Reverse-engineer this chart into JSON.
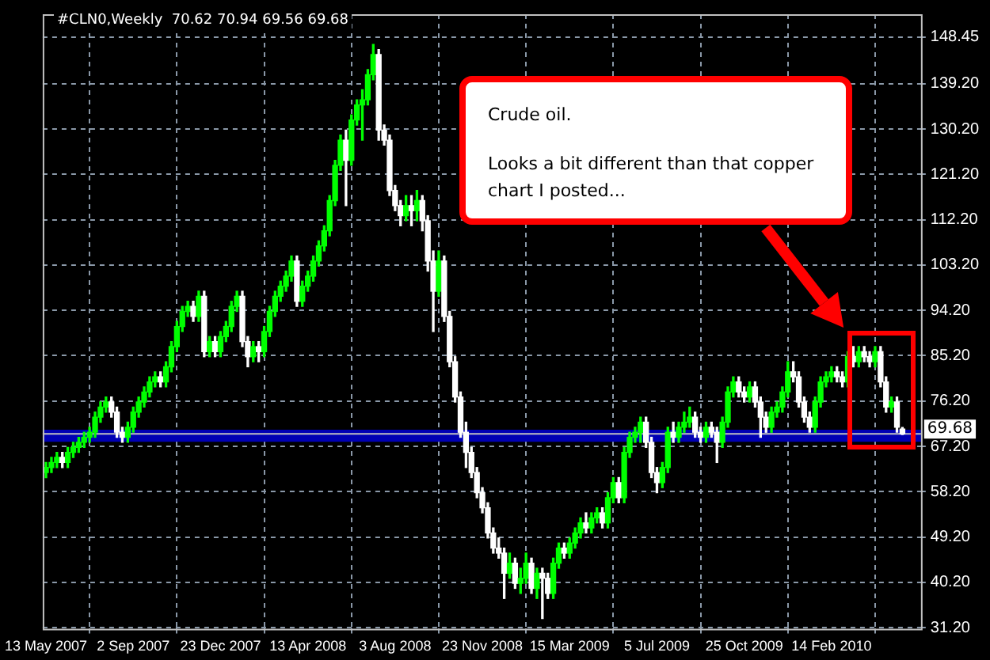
{
  "chart_data": {
    "type": "candlestick",
    "title": "#CLN0,Weekly  70.62 70.94 69.56 69.68",
    "annotations": [
      "Crude oil.",
      "Looks a bit different than that copper chart I posted..."
    ],
    "categories": [
      "13 May 2007",
      null,
      null,
      null,
      null,
      null,
      null,
      null,
      null,
      null,
      null,
      null,
      null,
      null,
      null,
      null,
      "2 Sep 2007",
      null,
      null,
      null,
      null,
      null,
      null,
      null,
      null,
      null,
      null,
      null,
      null,
      null,
      null,
      null,
      "23 Dec 2007",
      null,
      null,
      null,
      null,
      null,
      null,
      null,
      null,
      null,
      null,
      null,
      null,
      null,
      null,
      null,
      "13 Apr 2008",
      null,
      null,
      null,
      null,
      null,
      null,
      null,
      null,
      null,
      null,
      null,
      null,
      null,
      null,
      null,
      "3 Aug 2008",
      null,
      null,
      null,
      null,
      null,
      null,
      null,
      null,
      null,
      null,
      null,
      null,
      null,
      null,
      null,
      "23 Nov 2008",
      null,
      null,
      null,
      null,
      null,
      null,
      null,
      null,
      null,
      null,
      null,
      null,
      null,
      null,
      null,
      "15 Mar 2009",
      null,
      null,
      null,
      null,
      null,
      null,
      null,
      null,
      null,
      null,
      null,
      null,
      null,
      null,
      null,
      "5 Jul 2009",
      null,
      null,
      null,
      null,
      null,
      null,
      null,
      null,
      null,
      null,
      null,
      null,
      null,
      null,
      null,
      "25 Oct 2009",
      null,
      null,
      null,
      null,
      null,
      null,
      null,
      null,
      null,
      null,
      null,
      null,
      null,
      null,
      null,
      "14 Feb 2010",
      null,
      null,
      null,
      null,
      null,
      null,
      null,
      null,
      null,
      null,
      null,
      null,
      null
    ],
    "ohlc": [
      [
        62,
        64,
        61,
        63
      ],
      [
        63,
        65,
        62,
        64
      ],
      [
        64,
        66,
        63,
        65
      ],
      [
        65,
        66,
        63,
        64
      ],
      [
        64,
        67,
        63,
        66
      ],
      [
        66,
        68,
        65,
        67
      ],
      [
        67,
        69,
        66,
        68
      ],
      [
        68,
        70,
        67,
        69
      ],
      [
        69,
        71,
        68,
        70
      ],
      [
        70,
        74,
        69,
        73
      ],
      [
        73,
        76,
        72,
        75
      ],
      [
        75,
        77,
        74,
        76
      ],
      [
        76,
        77,
        73,
        74
      ],
      [
        74,
        75,
        69,
        70
      ],
      [
        70,
        71,
        68,
        69
      ],
      [
        69,
        72,
        68,
        71
      ],
      [
        71,
        75,
        70,
        74
      ],
      [
        74,
        77,
        73,
        76
      ],
      [
        76,
        79,
        75,
        78
      ],
      [
        78,
        81,
        77,
        80
      ],
      [
        80,
        82,
        79,
        81
      ],
      [
        81,
        82,
        79,
        80
      ],
      [
        80,
        84,
        79,
        83
      ],
      [
        83,
        88,
        82,
        87
      ],
      [
        87,
        92,
        86,
        91
      ],
      [
        91,
        95,
        90,
        94
      ],
      [
        94,
        96,
        93,
        95
      ],
      [
        95,
        96,
        92,
        93
      ],
      [
        93,
        98,
        92,
        97
      ],
      [
        97,
        98,
        85,
        86
      ],
      [
        86,
        89,
        85,
        88
      ],
      [
        88,
        89,
        85,
        86
      ],
      [
        86,
        90,
        85,
        89
      ],
      [
        89,
        92,
        88,
        91
      ],
      [
        91,
        96,
        90,
        95
      ],
      [
        95,
        98,
        94,
        97
      ],
      [
        97,
        98,
        87,
        88
      ],
      [
        88,
        89,
        83,
        85
      ],
      [
        85,
        88,
        84,
        87
      ],
      [
        87,
        88,
        84,
        86
      ],
      [
        86,
        91,
        85,
        90
      ],
      [
        90,
        95,
        89,
        94
      ],
      [
        94,
        98,
        93,
        97
      ],
      [
        97,
        100,
        96,
        99
      ],
      [
        99,
        102,
        98,
        101
      ],
      [
        101,
        105,
        100,
        104
      ],
      [
        104,
        105,
        95,
        96
      ],
      [
        96,
        100,
        95,
        99
      ],
      [
        99,
        102,
        98,
        101
      ],
      [
        101,
        105,
        100,
        104
      ],
      [
        104,
        108,
        103,
        107
      ],
      [
        107,
        111,
        106,
        110
      ],
      [
        110,
        117,
        109,
        116
      ],
      [
        116,
        124,
        115,
        123
      ],
      [
        123,
        129,
        122,
        128
      ],
      [
        128,
        130,
        115,
        124
      ],
      [
        124,
        133,
        123,
        132
      ],
      [
        132,
        136,
        131,
        135
      ],
      [
        135,
        138,
        128,
        136
      ],
      [
        136,
        142,
        135,
        141
      ],
      [
        141,
        147,
        140,
        145
      ],
      [
        145,
        146,
        128,
        130
      ],
      [
        130,
        131,
        127,
        128
      ],
      [
        128,
        129,
        117,
        118
      ],
      [
        118,
        119,
        114,
        115
      ],
      [
        115,
        116,
        111,
        113
      ],
      [
        113,
        117,
        112,
        115
      ],
      [
        115,
        117,
        111,
        114
      ],
      [
        114,
        118,
        112,
        116
      ],
      [
        116,
        117,
        110,
        112
      ],
      [
        112,
        113,
        102,
        104
      ],
      [
        104,
        106,
        90,
        98
      ],
      [
        98,
        106,
        97,
        104
      ],
      [
        104,
        105,
        92,
        93
      ],
      [
        93,
        94,
        83,
        84
      ],
      [
        84,
        85,
        76,
        77
      ],
      [
        77,
        78,
        69,
        70
      ],
      [
        70,
        72,
        63,
        66
      ],
      [
        66,
        67,
        61,
        62
      ],
      [
        62,
        63,
        57,
        58
      ],
      [
        58,
        59,
        54,
        55
      ],
      [
        55,
        56,
        49,
        50
      ],
      [
        50,
        51,
        46,
        47
      ],
      [
        47,
        49,
        45,
        46
      ],
      [
        46,
        47,
        37,
        42
      ],
      [
        42,
        46,
        41,
        44
      ],
      [
        44,
        45,
        39,
        40
      ],
      [
        40,
        43,
        38,
        41
      ],
      [
        41,
        46,
        40,
        44
      ],
      [
        44,
        45,
        38,
        39
      ],
      [
        39,
        43,
        37,
        42
      ],
      [
        42,
        43,
        33,
        41
      ],
      [
        41,
        42,
        37,
        38
      ],
      [
        38,
        45,
        37,
        44
      ],
      [
        44,
        48,
        43,
        47
      ],
      [
        47,
        48,
        45,
        46
      ],
      [
        46,
        49,
        45,
        48
      ],
      [
        48,
        51,
        47,
        50
      ],
      [
        50,
        53,
        49,
        52
      ],
      [
        52,
        54,
        50,
        51
      ],
      [
        51,
        54,
        50,
        53
      ],
      [
        53,
        55,
        52,
        54
      ],
      [
        54,
        55,
        51,
        52
      ],
      [
        52,
        58,
        51,
        57
      ],
      [
        57,
        61,
        56,
        60
      ],
      [
        60,
        61,
        56,
        57
      ],
      [
        57,
        67,
        56,
        66
      ],
      [
        66,
        70,
        65,
        69
      ],
      [
        69,
        71,
        68,
        70
      ],
      [
        70,
        73,
        68,
        72
      ],
      [
        72,
        73,
        67,
        68
      ],
      [
        68,
        69,
        61,
        62
      ],
      [
        62,
        63,
        58,
        60
      ],
      [
        60,
        64,
        59,
        63
      ],
      [
        63,
        71,
        62,
        70
      ],
      [
        70,
        72,
        68,
        69
      ],
      [
        69,
        72,
        68,
        71
      ],
      [
        71,
        74,
        70,
        72
      ],
      [
        72,
        75,
        71,
        73
      ],
      [
        73,
        74,
        69,
        70
      ],
      [
        70,
        71,
        68,
        69
      ],
      [
        69,
        72,
        68,
        71
      ],
      [
        71,
        72,
        69,
        70
      ],
      [
        70,
        71,
        64,
        68
      ],
      [
        68,
        73,
        67,
        72
      ],
      [
        72,
        79,
        71,
        78
      ],
      [
        78,
        81,
        77,
        80
      ],
      [
        80,
        81,
        77,
        78
      ],
      [
        78,
        79,
        76,
        77
      ],
      [
        77,
        80,
        76,
        79
      ],
      [
        79,
        80,
        75,
        76
      ],
      [
        76,
        77,
        69,
        73
      ],
      [
        73,
        74,
        70,
        71
      ],
      [
        71,
        75,
        70,
        74
      ],
      [
        74,
        76,
        73,
        75
      ],
      [
        75,
        79,
        74,
        78
      ],
      [
        78,
        84,
        77,
        82
      ],
      [
        82,
        84,
        80,
        81
      ],
      [
        81,
        82,
        75,
        76
      ],
      [
        76,
        77,
        72,
        73
      ],
      [
        73,
        74,
        70,
        71
      ],
      [
        71,
        77,
        70,
        76
      ],
      [
        76,
        81,
        75,
        80
      ],
      [
        80,
        82,
        79,
        81
      ],
      [
        81,
        83,
        80,
        82
      ],
      [
        82,
        83,
        80,
        81
      ],
      [
        81,
        82,
        79,
        80
      ],
      [
        80,
        86,
        79,
        85
      ],
      [
        85,
        87,
        83,
        84
      ],
      [
        84,
        87,
        83,
        86
      ],
      [
        86,
        87,
        84,
        85
      ],
      [
        85,
        86,
        83,
        84
      ],
      [
        84,
        87,
        83,
        86
      ],
      [
        86,
        87,
        79,
        80
      ],
      [
        80,
        81,
        74,
        75
      ],
      [
        75,
        77,
        74,
        76
      ],
      [
        76,
        77,
        70,
        71
      ],
      [
        70.62,
        70.94,
        69.56,
        69.68
      ]
    ],
    "colors": [
      "#00ff00",
      "#00ff00",
      "#00ff00",
      "#ffffff",
      "#00ff00",
      "#00ff00",
      "#00ff00",
      "#00ff00",
      "#00ff00",
      "#00ff00",
      "#00ff00",
      "#00ff00",
      "#ffffff",
      "#ffffff",
      "#ffffff",
      "#00ff00",
      "#00ff00",
      "#00ff00",
      "#00ff00",
      "#00ff00",
      "#00ff00",
      "#ffffff",
      "#00ff00",
      "#00ff00",
      "#00ff00",
      "#00ff00",
      "#00ff00",
      "#ffffff",
      "#00ff00",
      "#ffffff",
      "#00ff00",
      "#ffffff",
      "#00ff00",
      "#00ff00",
      "#00ff00",
      "#00ff00",
      "#ffffff",
      "#ffffff",
      "#00ff00",
      "#ffffff",
      "#00ff00",
      "#00ff00",
      "#00ff00",
      "#00ff00",
      "#00ff00",
      "#00ff00",
      "#ffffff",
      "#00ff00",
      "#00ff00",
      "#00ff00",
      "#00ff00",
      "#00ff00",
      "#00ff00",
      "#00ff00",
      "#00ff00",
      "#ffffff",
      "#00ff00",
      "#00ff00",
      "#00ff00",
      "#00ff00",
      "#00ff00",
      "#ffffff",
      "#ffffff",
      "#ffffff",
      "#ffffff",
      "#ffffff",
      "#00ff00",
      "#ffffff",
      "#00ff00",
      "#ffffff",
      "#ffffff",
      "#ffffff",
      "#00ff00",
      "#ffffff",
      "#ffffff",
      "#ffffff",
      "#ffffff",
      "#ffffff",
      "#ffffff",
      "#ffffff",
      "#ffffff",
      "#ffffff",
      "#ffffff",
      "#ffffff",
      "#ffffff",
      "#00ff00",
      "#ffffff",
      "#00ff00",
      "#00ff00",
      "#ffffff",
      "#00ff00",
      "#ffffff",
      "#ffffff",
      "#00ff00",
      "#00ff00",
      "#ffffff",
      "#00ff00",
      "#00ff00",
      "#00ff00",
      "#ffffff",
      "#00ff00",
      "#00ff00",
      "#ffffff",
      "#00ff00",
      "#00ff00",
      "#ffffff",
      "#00ff00",
      "#00ff00",
      "#00ff00",
      "#00ff00",
      "#ffffff",
      "#ffffff",
      "#ffffff",
      "#00ff00",
      "#00ff00",
      "#ffffff",
      "#00ff00",
      "#00ff00",
      "#00ff00",
      "#ffffff",
      "#ffffff",
      "#00ff00",
      "#ffffff",
      "#ffffff",
      "#00ff00",
      "#00ff00",
      "#00ff00",
      "#ffffff",
      "#ffffff",
      "#00ff00",
      "#ffffff",
      "#ffffff",
      "#ffffff",
      "#00ff00",
      "#00ff00",
      "#00ff00",
      "#00ff00",
      "#ffffff",
      "#ffffff",
      "#ffffff",
      "#ffffff",
      "#00ff00",
      "#00ff00",
      "#00ff00",
      "#00ff00",
      "#ffffff",
      "#ffffff",
      "#00ff00",
      "#ffffff",
      "#00ff00",
      "#ffffff",
      "#ffffff",
      "#00ff00",
      "#ffffff",
      "#ffffff",
      "#00ff00",
      "#ffffff",
      "#ffffff"
    ],
    "ylim": [
      31,
      153
    ],
    "yticks": [
      {
        "value": 31.2,
        "label": "31.20"
      },
      {
        "value": 40.2,
        "label": "40.20"
      },
      {
        "value": 49.2,
        "label": "49.20"
      },
      {
        "value": 58.2,
        "label": "58.20"
      },
      {
        "value": 67.2,
        "label": "67.20"
      },
      {
        "value": 76.2,
        "label": "76.20"
      },
      {
        "value": 85.2,
        "label": "85.20"
      },
      {
        "value": 94.2,
        "label": "94.20"
      },
      {
        "value": 103.2,
        "label": "103.20"
      },
      {
        "value": 112.2,
        "label": "112.20"
      },
      {
        "value": 121.2,
        "label": "121.20"
      },
      {
        "value": 130.2,
        "label": "130.20"
      },
      {
        "value": 139.2,
        "label": "139.20"
      },
      148.45
    ],
    "grid": true,
    "bands": [
      {
        "axis": "y",
        "from": 68.1,
        "to": 70.5,
        "color": "#0000b4"
      }
    ],
    "ref_lines": [
      {
        "axis": "y",
        "value": 69.68,
        "label": "69.68",
        "color": "#c0c0c0"
      }
    ]
  }
}
